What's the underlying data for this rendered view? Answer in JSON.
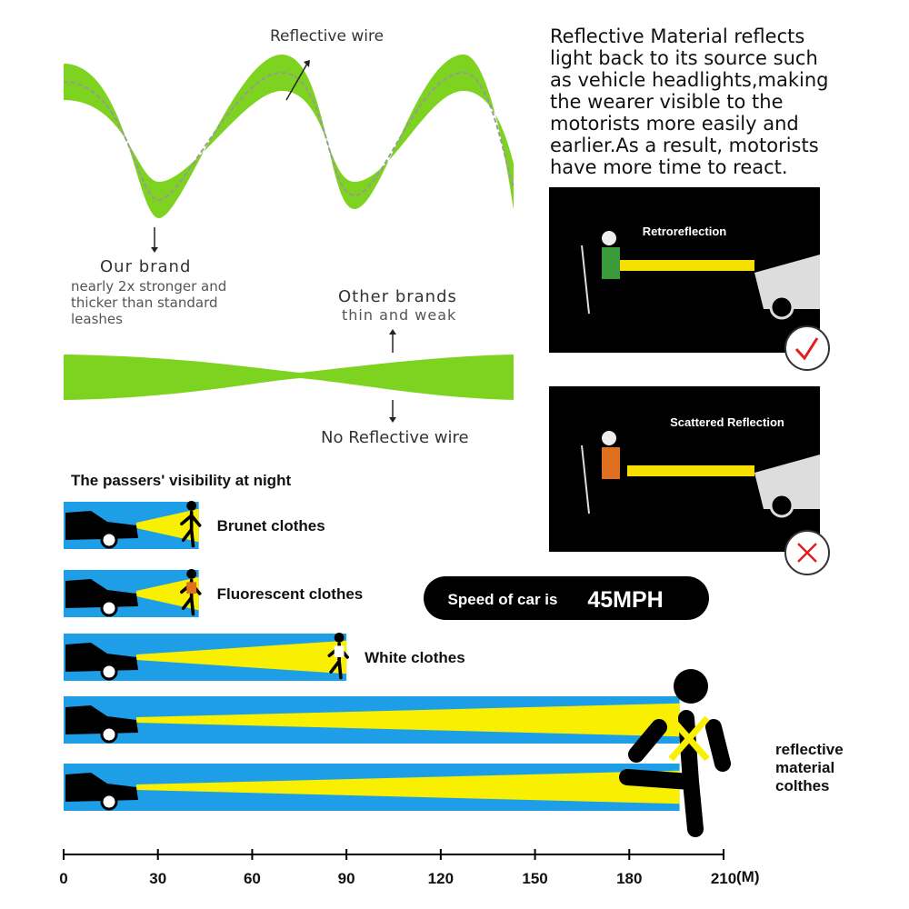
{
  "leash": {
    "reflective_label": "Reflective wire",
    "our_brand": "Our brand",
    "our_brand_note": "nearly 2x stronger and thicker than standard leashes",
    "other_brands": "Other brands",
    "other_brands_note": "thin and weak",
    "no_reflective": "No Reflective wire"
  },
  "explanation": "Reflective Material reflects light back to its source such as vehicle headlights,making the wearer visible to the motorists more easily and earlier.As a result, motorists have more time to react.",
  "panels": [
    {
      "title": "Retroreflection"
    },
    {
      "title": "Scattered Reflection"
    }
  ],
  "speed": {
    "label": "Speed of car is",
    "value": "45MPH"
  },
  "chart_data": {
    "type": "bar",
    "orientation": "horizontal",
    "title": "The passers' visibility at night",
    "categories": [
      "Brunet clothes",
      "Fluorescent clothes",
      "White clothes",
      null,
      "reflective material colthes"
    ],
    "values": [
      43,
      43,
      90,
      196,
      196
    ],
    "color": "#1e9ee6",
    "xlim": [
      0,
      210
    ],
    "xticks": [
      0,
      30,
      60,
      90,
      120,
      150,
      180,
      210
    ],
    "x_unit": "(M)"
  }
}
